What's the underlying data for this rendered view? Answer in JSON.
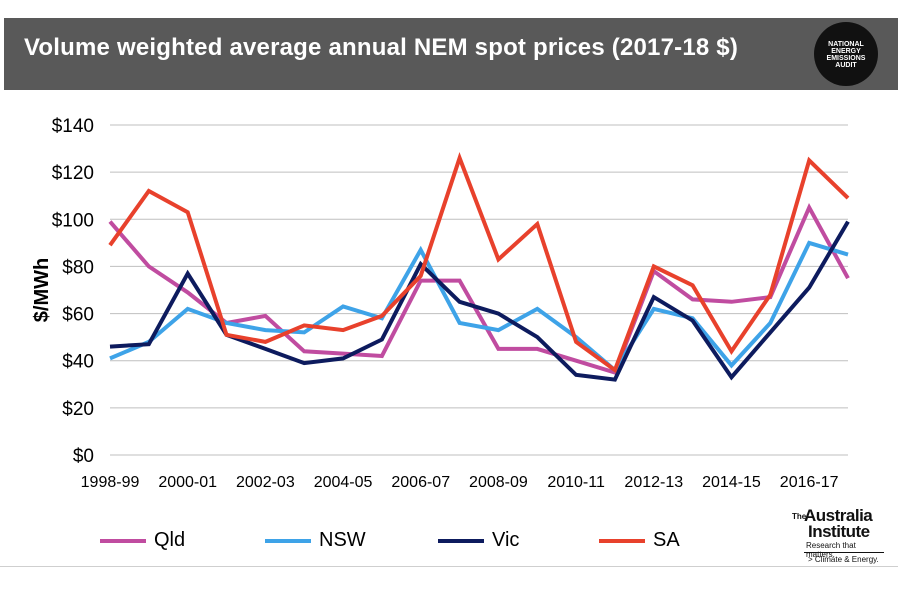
{
  "header": {
    "title": "Volume weighted average annual NEM spot prices (2017-18 $)",
    "badge_lines": [
      "NATIONAL",
      "ENERGY",
      "EMISSIONS",
      "AUDIT"
    ]
  },
  "logo": {
    "the": "The",
    "name_line1": "Australia",
    "name_line2": "Institute",
    "tagline": "Research that matters.",
    "subtext": "> Climate & Energy."
  },
  "chart_data": {
    "type": "line",
    "title": "Volume weighted average annual NEM spot prices (2017-18 $)",
    "xlabel": "",
    "ylabel": "$/MWh",
    "ylim": [
      0,
      140
    ],
    "yticks": [
      0,
      20,
      40,
      60,
      80,
      100,
      120,
      140
    ],
    "ytick_labels": [
      "$0",
      "$20",
      "$40",
      "$60",
      "$80",
      "$100",
      "$120",
      "$140"
    ],
    "categories": [
      "1998-99",
      "1999-00",
      "2000-01",
      "2001-02",
      "2002-03",
      "2003-04",
      "2004-05",
      "2005-06",
      "2006-07",
      "2007-08",
      "2008-09",
      "2009-10",
      "2010-11",
      "2011-12",
      "2012-13",
      "2013-14",
      "2014-15",
      "2015-16",
      "2016-17",
      "2017-18"
    ],
    "xtick_labels": [
      "1998-99",
      "",
      "2000-01",
      "",
      "2002-03",
      "",
      "2004-05",
      "",
      "2006-07",
      "",
      "2008-09",
      "",
      "2010-11",
      "",
      "2012-13",
      "",
      "2014-15",
      "",
      "2016-17",
      ""
    ],
    "grid": true,
    "legend_position": "bottom",
    "series": [
      {
        "name": "Qld",
        "color": "#c04ca0",
        "values": [
          99,
          80,
          69,
          56,
          59,
          44,
          43,
          42,
          74,
          74,
          45,
          45,
          40,
          35,
          78,
          66,
          65,
          67,
          105,
          75
        ]
      },
      {
        "name": "NSW",
        "color": "#3ea3e8",
        "values": [
          41,
          48,
          62,
          56,
          53,
          52,
          63,
          58,
          87,
          56,
          53,
          62,
          50,
          36,
          62,
          58,
          38,
          56,
          90,
          85
        ]
      },
      {
        "name": "Vic",
        "color": "#0d1b5e",
        "values": [
          46,
          47,
          77,
          51,
          45,
          39,
          41,
          49,
          81,
          65,
          60,
          50,
          34,
          32,
          67,
          57,
          33,
          52,
          71,
          99
        ]
      },
      {
        "name": "SA",
        "color": "#e8412c",
        "values": [
          89,
          112,
          103,
          51,
          48,
          55,
          53,
          59,
          76,
          126,
          83,
          98,
          48,
          36,
          80,
          72,
          44,
          68,
          125,
          109
        ]
      }
    ]
  }
}
